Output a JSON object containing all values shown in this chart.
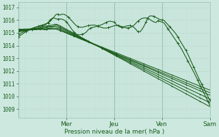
{
  "background_color": "#cce8df",
  "plot_bg_color": "#cce8df",
  "grid_minor_color": "#b8d8cc",
  "grid_major_color": "#98c0b0",
  "line_color": "#1a5c1a",
  "xlabel": "Pression niveau de la mer( hPa )",
  "xlabel_color": "#1a5c1a",
  "tick_color": "#1a5c1a",
  "ylim": [
    1008.3,
    1017.4
  ],
  "yticks": [
    1009,
    1010,
    1011,
    1012,
    1013,
    1014,
    1015,
    1016,
    1017
  ],
  "day_labels": [
    "Mer",
    "Jeu",
    "Ven",
    "Sam"
  ],
  "day_positions": [
    0.25,
    0.5,
    0.75,
    1.0
  ],
  "num_points": 97
}
